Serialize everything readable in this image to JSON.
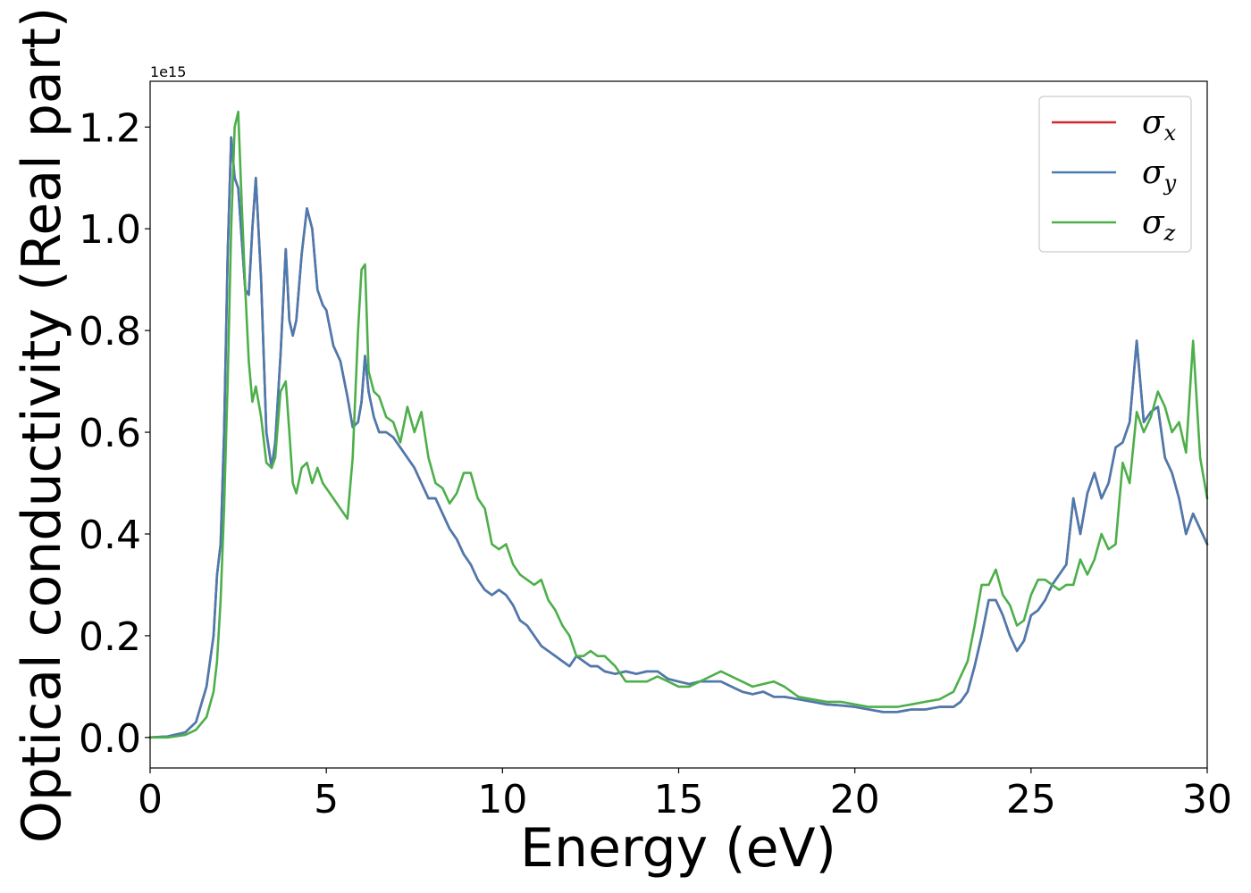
{
  "chart_data": {
    "type": "line",
    "xlabel": "Energy (eV)",
    "ylabel": "Optical conductivity (Real part)",
    "y_offset_label": "1e15",
    "xlim": [
      0,
      30
    ],
    "ylim": [
      -0.06,
      1.29
    ],
    "xticks": [
      0,
      5,
      10,
      15,
      20,
      25,
      30
    ],
    "xtick_labels": [
      "0",
      "5",
      "10",
      "15",
      "20",
      "25",
      "30"
    ],
    "yticks": [
      0.0,
      0.2,
      0.4,
      0.6,
      0.8,
      1.0,
      1.2
    ],
    "ytick_labels": [
      "0.0",
      "0.2",
      "0.4",
      "0.6",
      "0.8",
      "1.0",
      "1.2"
    ],
    "grid": false,
    "legend_position": "top-right",
    "series": [
      {
        "name": "σx",
        "symbol": "σ",
        "subscript": "x",
        "color": "#d62728",
        "x": [
          0,
          0.5,
          1.0,
          1.3,
          1.6,
          1.8,
          1.9,
          2.0,
          2.1,
          2.2,
          2.3,
          2.4,
          2.5,
          2.6,
          2.7,
          2.8,
          2.9,
          3.0,
          3.15,
          3.3,
          3.45,
          3.55,
          3.7,
          3.85,
          3.95,
          4.05,
          4.15,
          4.3,
          4.45,
          4.6,
          4.75,
          4.9,
          5.0,
          5.2,
          5.4,
          5.6,
          5.75,
          5.9,
          6.0,
          6.1,
          6.2,
          6.35,
          6.5,
          6.7,
          6.9,
          7.1,
          7.3,
          7.5,
          7.7,
          7.9,
          8.1,
          8.3,
          8.5,
          8.7,
          8.9,
          9.1,
          9.3,
          9.5,
          9.7,
          9.9,
          10.1,
          10.3,
          10.5,
          10.7,
          10.9,
          11.1,
          11.3,
          11.5,
          11.7,
          11.9,
          12.1,
          12.3,
          12.5,
          12.7,
          12.9,
          13.2,
          13.5,
          13.8,
          14.1,
          14.4,
          14.7,
          15.0,
          15.3,
          15.6,
          15.9,
          16.2,
          16.5,
          16.8,
          17.1,
          17.4,
          17.7,
          18.0,
          18.4,
          18.8,
          19.2,
          19.6,
          20.0,
          20.4,
          20.8,
          21.2,
          21.6,
          22.0,
          22.4,
          22.8,
          23.0,
          23.2,
          23.4,
          23.6,
          23.8,
          24.0,
          24.2,
          24.4,
          24.6,
          24.8,
          25.0,
          25.2,
          25.4,
          25.6,
          25.8,
          26.0,
          26.2,
          26.4,
          26.6,
          26.8,
          27.0,
          27.2,
          27.4,
          27.6,
          27.8,
          28.0,
          28.2,
          28.4,
          28.6,
          28.8,
          29.0,
          29.2,
          29.4,
          29.6,
          29.8,
          30.0
        ],
        "y": [
          0.0,
          0.002,
          0.01,
          0.03,
          0.1,
          0.2,
          0.32,
          0.38,
          0.6,
          0.95,
          1.18,
          1.1,
          1.08,
          0.98,
          0.88,
          0.87,
          1.0,
          1.1,
          0.9,
          0.6,
          0.53,
          0.58,
          0.75,
          0.96,
          0.82,
          0.79,
          0.82,
          0.95,
          1.04,
          1.0,
          0.88,
          0.85,
          0.84,
          0.77,
          0.74,
          0.67,
          0.61,
          0.62,
          0.66,
          0.75,
          0.68,
          0.63,
          0.6,
          0.6,
          0.59,
          0.57,
          0.55,
          0.53,
          0.5,
          0.47,
          0.47,
          0.44,
          0.41,
          0.39,
          0.36,
          0.34,
          0.31,
          0.29,
          0.28,
          0.29,
          0.28,
          0.26,
          0.23,
          0.22,
          0.2,
          0.18,
          0.17,
          0.16,
          0.15,
          0.14,
          0.16,
          0.15,
          0.14,
          0.14,
          0.13,
          0.125,
          0.13,
          0.125,
          0.13,
          0.13,
          0.115,
          0.11,
          0.105,
          0.11,
          0.11,
          0.11,
          0.1,
          0.09,
          0.085,
          0.09,
          0.08,
          0.08,
          0.075,
          0.07,
          0.065,
          0.063,
          0.06,
          0.055,
          0.05,
          0.05,
          0.055,
          0.055,
          0.06,
          0.06,
          0.07,
          0.09,
          0.14,
          0.2,
          0.27,
          0.27,
          0.24,
          0.2,
          0.17,
          0.19,
          0.24,
          0.25,
          0.27,
          0.3,
          0.32,
          0.34,
          0.47,
          0.4,
          0.48,
          0.52,
          0.47,
          0.5,
          0.57,
          0.58,
          0.62,
          0.78,
          0.62,
          0.64,
          0.65,
          0.55,
          0.52,
          0.47,
          0.4,
          0.44,
          0.41,
          0.38
        ]
      },
      {
        "name": "σy",
        "symbol": "σ",
        "subscript": "y",
        "color": "#4a7bb0",
        "x": [
          0,
          0.5,
          1.0,
          1.3,
          1.6,
          1.8,
          1.9,
          2.0,
          2.1,
          2.2,
          2.3,
          2.4,
          2.5,
          2.6,
          2.7,
          2.8,
          2.9,
          3.0,
          3.15,
          3.3,
          3.45,
          3.55,
          3.7,
          3.85,
          3.95,
          4.05,
          4.15,
          4.3,
          4.45,
          4.6,
          4.75,
          4.9,
          5.0,
          5.2,
          5.4,
          5.6,
          5.75,
          5.9,
          6.0,
          6.1,
          6.2,
          6.35,
          6.5,
          6.7,
          6.9,
          7.1,
          7.3,
          7.5,
          7.7,
          7.9,
          8.1,
          8.3,
          8.5,
          8.7,
          8.9,
          9.1,
          9.3,
          9.5,
          9.7,
          9.9,
          10.1,
          10.3,
          10.5,
          10.7,
          10.9,
          11.1,
          11.3,
          11.5,
          11.7,
          11.9,
          12.1,
          12.3,
          12.5,
          12.7,
          12.9,
          13.2,
          13.5,
          13.8,
          14.1,
          14.4,
          14.7,
          15.0,
          15.3,
          15.6,
          15.9,
          16.2,
          16.5,
          16.8,
          17.1,
          17.4,
          17.7,
          18.0,
          18.4,
          18.8,
          19.2,
          19.6,
          20.0,
          20.4,
          20.8,
          21.2,
          21.6,
          22.0,
          22.4,
          22.8,
          23.0,
          23.2,
          23.4,
          23.6,
          23.8,
          24.0,
          24.2,
          24.4,
          24.6,
          24.8,
          25.0,
          25.2,
          25.4,
          25.6,
          25.8,
          26.0,
          26.2,
          26.4,
          26.6,
          26.8,
          27.0,
          27.2,
          27.4,
          27.6,
          27.8,
          28.0,
          28.2,
          28.4,
          28.6,
          28.8,
          29.0,
          29.2,
          29.4,
          29.6,
          29.8,
          30.0
        ],
        "y": [
          0.0,
          0.002,
          0.01,
          0.03,
          0.1,
          0.2,
          0.32,
          0.38,
          0.6,
          0.95,
          1.18,
          1.1,
          1.08,
          0.98,
          0.88,
          0.87,
          1.0,
          1.1,
          0.9,
          0.6,
          0.53,
          0.58,
          0.75,
          0.96,
          0.82,
          0.79,
          0.82,
          0.95,
          1.04,
          1.0,
          0.88,
          0.85,
          0.84,
          0.77,
          0.74,
          0.67,
          0.61,
          0.62,
          0.66,
          0.75,
          0.68,
          0.63,
          0.6,
          0.6,
          0.59,
          0.57,
          0.55,
          0.53,
          0.5,
          0.47,
          0.47,
          0.44,
          0.41,
          0.39,
          0.36,
          0.34,
          0.31,
          0.29,
          0.28,
          0.29,
          0.28,
          0.26,
          0.23,
          0.22,
          0.2,
          0.18,
          0.17,
          0.16,
          0.15,
          0.14,
          0.16,
          0.15,
          0.14,
          0.14,
          0.13,
          0.125,
          0.13,
          0.125,
          0.13,
          0.13,
          0.115,
          0.11,
          0.105,
          0.11,
          0.11,
          0.11,
          0.1,
          0.09,
          0.085,
          0.09,
          0.08,
          0.08,
          0.075,
          0.07,
          0.065,
          0.063,
          0.06,
          0.055,
          0.05,
          0.05,
          0.055,
          0.055,
          0.06,
          0.06,
          0.07,
          0.09,
          0.14,
          0.2,
          0.27,
          0.27,
          0.24,
          0.2,
          0.17,
          0.19,
          0.24,
          0.25,
          0.27,
          0.3,
          0.32,
          0.34,
          0.47,
          0.4,
          0.48,
          0.52,
          0.47,
          0.5,
          0.57,
          0.58,
          0.62,
          0.78,
          0.62,
          0.64,
          0.65,
          0.55,
          0.52,
          0.47,
          0.4,
          0.44,
          0.41,
          0.38
        ]
      },
      {
        "name": "σz",
        "symbol": "σ",
        "subscript": "z",
        "color": "#4daf4a",
        "x": [
          0,
          0.5,
          1.0,
          1.3,
          1.6,
          1.8,
          1.9,
          2.0,
          2.1,
          2.2,
          2.3,
          2.4,
          2.5,
          2.6,
          2.7,
          2.8,
          2.9,
          3.0,
          3.15,
          3.3,
          3.45,
          3.55,
          3.7,
          3.85,
          3.95,
          4.05,
          4.15,
          4.3,
          4.45,
          4.6,
          4.75,
          4.9,
          5.0,
          5.2,
          5.4,
          5.6,
          5.75,
          5.9,
          6.0,
          6.1,
          6.2,
          6.35,
          6.5,
          6.7,
          6.9,
          7.1,
          7.3,
          7.5,
          7.7,
          7.9,
          8.1,
          8.3,
          8.5,
          8.7,
          8.9,
          9.1,
          9.3,
          9.5,
          9.7,
          9.9,
          10.1,
          10.3,
          10.5,
          10.7,
          10.9,
          11.1,
          11.3,
          11.5,
          11.7,
          11.9,
          12.1,
          12.3,
          12.5,
          12.7,
          12.9,
          13.2,
          13.5,
          13.8,
          14.1,
          14.4,
          14.7,
          15.0,
          15.3,
          15.6,
          15.9,
          16.2,
          16.5,
          16.8,
          17.1,
          17.4,
          17.7,
          18.0,
          18.4,
          18.8,
          19.2,
          19.6,
          20.0,
          20.4,
          20.8,
          21.2,
          21.6,
          22.0,
          22.4,
          22.8,
          23.0,
          23.2,
          23.4,
          23.6,
          23.8,
          24.0,
          24.2,
          24.4,
          24.6,
          24.8,
          25.0,
          25.2,
          25.4,
          25.6,
          25.8,
          26.0,
          26.2,
          26.4,
          26.6,
          26.8,
          27.0,
          27.2,
          27.4,
          27.6,
          27.8,
          28.0,
          28.2,
          28.4,
          28.6,
          28.8,
          29.0,
          29.2,
          29.4,
          29.6,
          29.8,
          30.0
        ],
        "y": [
          0.0,
          0.0,
          0.005,
          0.015,
          0.04,
          0.09,
          0.15,
          0.27,
          0.45,
          0.7,
          1.0,
          1.2,
          1.23,
          1.05,
          0.88,
          0.74,
          0.66,
          0.69,
          0.63,
          0.54,
          0.53,
          0.55,
          0.68,
          0.7,
          0.6,
          0.5,
          0.48,
          0.53,
          0.54,
          0.5,
          0.53,
          0.5,
          0.49,
          0.47,
          0.45,
          0.43,
          0.55,
          0.8,
          0.92,
          0.93,
          0.72,
          0.68,
          0.67,
          0.63,
          0.62,
          0.58,
          0.65,
          0.6,
          0.64,
          0.55,
          0.5,
          0.49,
          0.46,
          0.48,
          0.52,
          0.52,
          0.47,
          0.45,
          0.38,
          0.37,
          0.38,
          0.34,
          0.32,
          0.31,
          0.3,
          0.31,
          0.27,
          0.25,
          0.22,
          0.2,
          0.16,
          0.16,
          0.17,
          0.16,
          0.16,
          0.14,
          0.11,
          0.11,
          0.11,
          0.12,
          0.11,
          0.1,
          0.1,
          0.11,
          0.12,
          0.13,
          0.12,
          0.11,
          0.1,
          0.105,
          0.11,
          0.1,
          0.08,
          0.075,
          0.07,
          0.07,
          0.065,
          0.06,
          0.06,
          0.06,
          0.065,
          0.07,
          0.075,
          0.09,
          0.12,
          0.15,
          0.22,
          0.3,
          0.3,
          0.33,
          0.28,
          0.26,
          0.22,
          0.23,
          0.28,
          0.31,
          0.31,
          0.3,
          0.29,
          0.3,
          0.3,
          0.35,
          0.32,
          0.35,
          0.4,
          0.37,
          0.38,
          0.54,
          0.5,
          0.64,
          0.6,
          0.63,
          0.68,
          0.65,
          0.6,
          0.62,
          0.56,
          0.78,
          0.55,
          0.47
        ]
      }
    ]
  }
}
